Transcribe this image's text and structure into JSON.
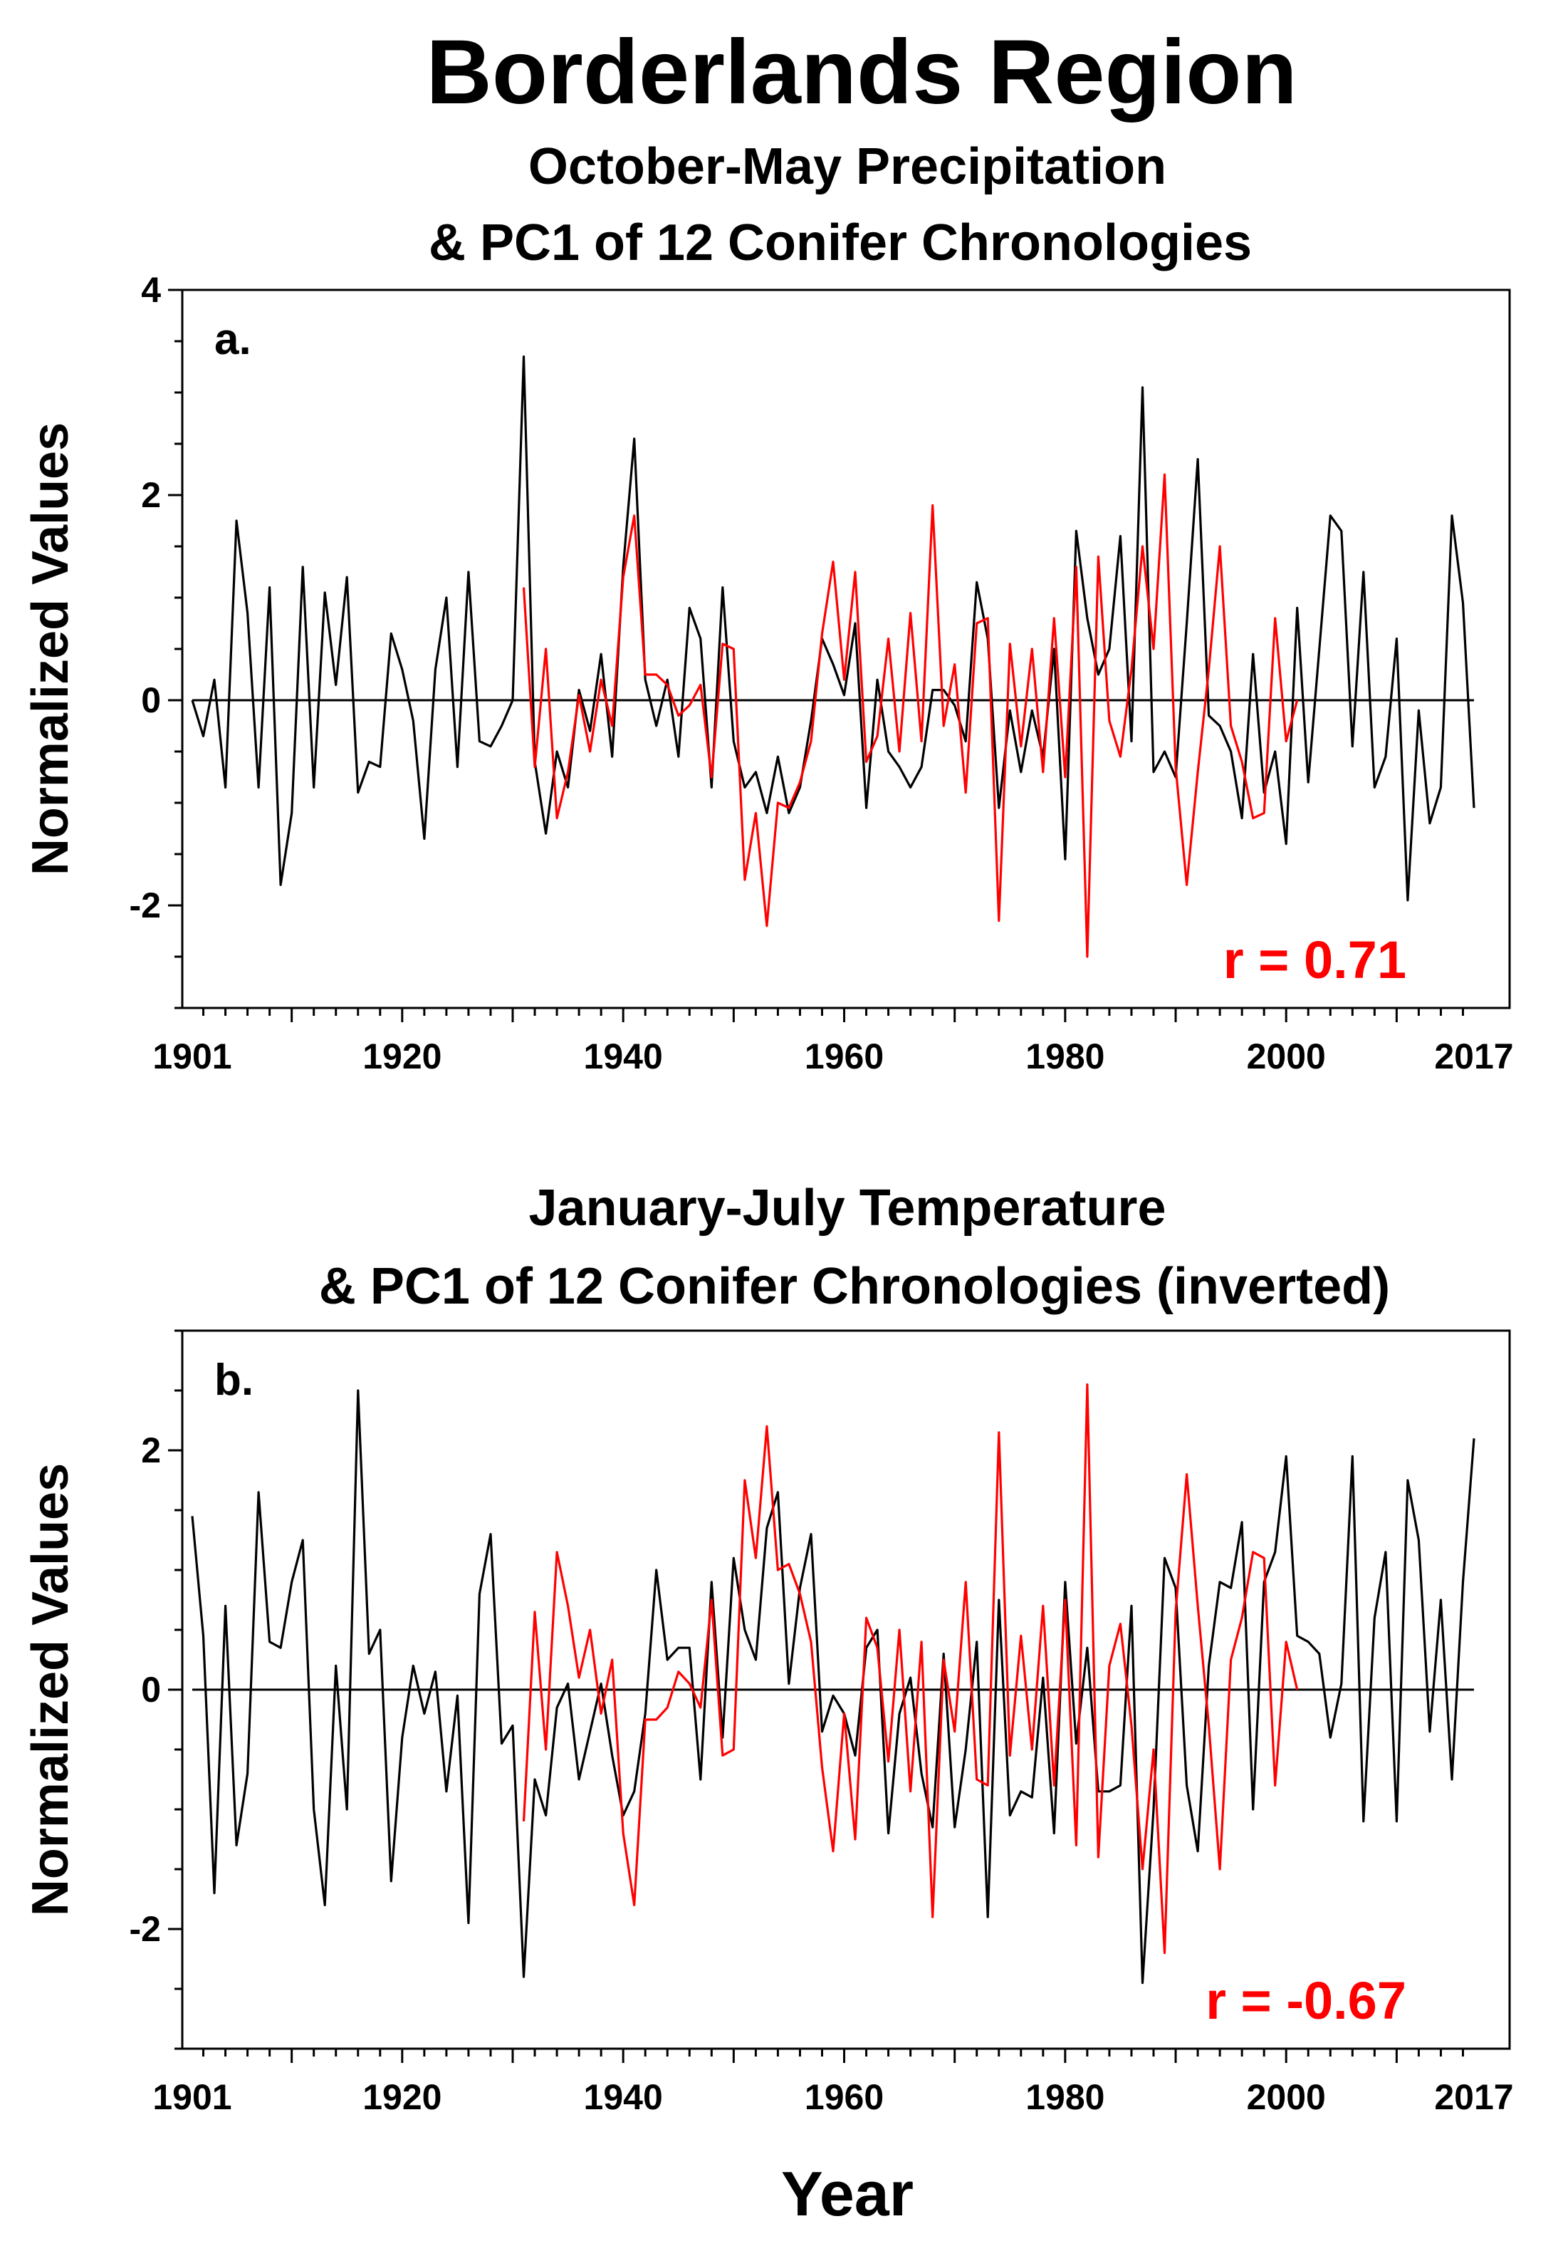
{
  "figure": {
    "title": "Borderlands Region",
    "x_axis_title": "Year"
  },
  "colors": {
    "observed": "#000000",
    "tree_ring": "#ff0000",
    "axis": "#000000"
  },
  "chart_data": [
    {
      "type": "line",
      "panel": "a.",
      "title_line1": "October-May Precipitation",
      "title_line2": "& PC1 of 12 Conifer Chronologies",
      "ylabel": "Normalized Values",
      "xlabel": "Year",
      "xlim": [
        1901,
        2017
      ],
      "ylim": [
        -3,
        4
      ],
      "xticks": [
        1901,
        1920,
        1940,
        1960,
        1980,
        2000,
        2017
      ],
      "yticks": [
        -2,
        0,
        2,
        4
      ],
      "correlation": "r = 0.71",
      "series": [
        {
          "name": "October-May Precipitation",
          "color": "#000000",
          "start_year": 1901,
          "values": [
            0.0,
            -0.35,
            0.2,
            -0.85,
            1.75,
            0.85,
            -0.85,
            1.1,
            -1.8,
            -1.1,
            1.3,
            -0.85,
            1.05,
            0.15,
            1.2,
            -0.9,
            -0.6,
            -0.65,
            0.65,
            0.3,
            -0.2,
            -1.35,
            0.3,
            1.0,
            -0.65,
            1.25,
            -0.4,
            -0.45,
            -0.25,
            0.0,
            3.35,
            -0.6,
            -1.3,
            -0.5,
            -0.85,
            0.1,
            -0.3,
            0.45,
            -0.55,
            1.3,
            2.55,
            0.2,
            -0.25,
            0.2,
            -0.55,
            0.9,
            0.6,
            -0.85,
            1.1,
            -0.4,
            -0.85,
            -0.7,
            -1.1,
            -0.55,
            -1.1,
            -0.85,
            -0.2,
            0.6,
            0.35,
            0.05,
            0.75,
            -1.05,
            0.2,
            -0.5,
            -0.65,
            -0.85,
            -0.65,
            0.1,
            0.1,
            -0.05,
            -0.4,
            1.15,
            0.6,
            -1.05,
            -0.1,
            -0.7,
            -0.1,
            -0.55,
            0.5,
            -1.55,
            1.65,
            0.8,
            0.25,
            0.5,
            1.6,
            -0.4,
            3.05,
            -0.7,
            -0.5,
            -0.75,
            0.75,
            2.35,
            -0.15,
            -0.25,
            -0.5,
            -1.15,
            0.45,
            -0.9,
            -0.5,
            -1.4,
            0.9,
            -0.8,
            0.5,
            1.8,
            1.65,
            -0.45,
            1.25,
            -0.85,
            -0.55,
            0.6,
            -1.95,
            -0.1,
            -1.2,
            -0.85,
            1.8,
            0.95,
            -1.05
          ]
        },
        {
          "name": "PC1 of 12 Conifer Chronologies",
          "color": "#ff0000",
          "start_year": 1931,
          "values": [
            1.1,
            -0.65,
            0.5,
            -1.15,
            -0.7,
            0.05,
            -0.5,
            0.2,
            -0.25,
            1.2,
            1.8,
            0.25,
            0.25,
            0.15,
            -0.15,
            -0.05,
            0.15,
            -0.75,
            0.55,
            0.5,
            -1.75,
            -1.1,
            -2.2,
            -1.0,
            -1.05,
            -0.8,
            -0.4,
            0.65,
            1.35,
            0.2,
            1.25,
            -0.6,
            -0.35,
            0.6,
            -0.5,
            0.85,
            -0.4,
            1.9,
            -0.25,
            0.35,
            -0.9,
            0.75,
            0.8,
            -2.15,
            0.55,
            -0.45,
            0.5,
            -0.7,
            0.8,
            -0.75,
            1.3,
            -2.5,
            1.4,
            -0.2,
            -0.55,
            0.3,
            1.5,
            0.5,
            2.2,
            -0.65,
            -1.8,
            -0.7,
            0.3,
            1.5,
            -0.25,
            -0.6,
            -1.15,
            -1.1,
            0.8,
            -0.4,
            0.0
          ]
        }
      ]
    },
    {
      "type": "line",
      "panel": "b.",
      "title_line1": "January-July Temperature",
      "title_line2": "& PC1 of 12 Conifer Chronologies (inverted)",
      "ylabel": "Normalized Values",
      "xlabel": "Year",
      "xlim": [
        1901,
        2017
      ],
      "ylim": [
        -3,
        3
      ],
      "xticks": [
        1901,
        1920,
        1940,
        1960,
        1980,
        2000,
        2017
      ],
      "yticks": [
        -2,
        0,
        2
      ],
      "correlation": "r = -0.67",
      "series": [
        {
          "name": "January-July Temperature",
          "color": "#000000",
          "start_year": 1901,
          "values": [
            1.45,
            0.45,
            -1.7,
            0.7,
            -1.3,
            -0.7,
            1.65,
            0.4,
            0.35,
            0.9,
            1.25,
            -1.0,
            -1.8,
            0.2,
            -1.0,
            2.5,
            0.3,
            0.5,
            -1.6,
            -0.4,
            0.2,
            -0.2,
            0.15,
            -0.85,
            -0.05,
            -1.95,
            0.8,
            1.3,
            -0.45,
            -0.3,
            -2.4,
            -0.75,
            -1.05,
            -0.15,
            0.05,
            -0.75,
            -0.35,
            0.05,
            -0.55,
            -1.05,
            -0.85,
            -0.2,
            1.0,
            0.25,
            0.35,
            0.35,
            -0.75,
            0.9,
            -0.4,
            1.1,
            0.5,
            0.25,
            1.35,
            1.65,
            0.05,
            0.85,
            1.3,
            -0.35,
            -0.05,
            -0.2,
            -0.55,
            0.35,
            0.5,
            -1.2,
            -0.2,
            0.1,
            -0.7,
            -1.15,
            0.3,
            -1.15,
            -0.5,
            0.4,
            -1.9,
            0.75,
            -1.05,
            -0.85,
            -0.9,
            0.1,
            -1.2,
            0.9,
            -0.45,
            0.35,
            -0.85,
            -0.85,
            -0.8,
            0.7,
            -2.45,
            -1.0,
            1.1,
            0.85,
            -0.8,
            -1.35,
            0.2,
            0.9,
            0.85,
            1.4,
            -1.0,
            0.9,
            1.15,
            1.95,
            0.45,
            0.4,
            0.3,
            -0.4,
            0.05,
            1.95,
            -1.1,
            0.6,
            1.15,
            -1.1,
            1.75,
            1.25,
            -0.35,
            0.75,
            -0.75,
            0.9,
            2.1
          ]
        },
        {
          "name": "PC1 of 12 Conifer Chronologies (inverted)",
          "color": "#ff0000",
          "start_year": 1931,
          "values": [
            -1.1,
            0.65,
            -0.5,
            1.15,
            0.7,
            0.1,
            0.5,
            -0.2,
            0.25,
            -1.2,
            -1.8,
            -0.25,
            -0.25,
            -0.15,
            0.15,
            0.05,
            -0.15,
            0.75,
            -0.55,
            -0.5,
            1.75,
            1.1,
            2.2,
            1.0,
            1.05,
            0.8,
            0.4,
            -0.65,
            -1.35,
            -0.2,
            -1.25,
            0.6,
            0.35,
            -0.6,
            0.5,
            -0.85,
            0.4,
            -1.9,
            0.25,
            -0.35,
            0.9,
            -0.75,
            -0.8,
            2.15,
            -0.55,
            0.45,
            -0.5,
            0.7,
            -0.8,
            0.75,
            -1.3,
            2.55,
            -1.4,
            0.2,
            0.55,
            -0.3,
            -1.5,
            -0.5,
            -2.2,
            0.65,
            1.8,
            0.7,
            -0.3,
            -1.5,
            0.25,
            0.6,
            1.15,
            1.1,
            -0.8,
            0.4,
            0.0
          ]
        }
      ]
    }
  ]
}
